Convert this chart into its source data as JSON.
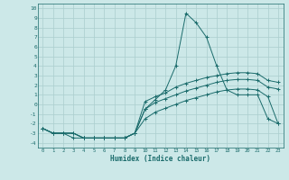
{
  "x": [
    0,
    1,
    2,
    3,
    4,
    5,
    6,
    7,
    8,
    9,
    10,
    11,
    12,
    13,
    14,
    15,
    16,
    17,
    18,
    19,
    20,
    21,
    22,
    23
  ],
  "line1": [
    -2.5,
    -3,
    -3,
    -3.5,
    -3.5,
    -3.5,
    -3.5,
    -3.5,
    -3.5,
    -3,
    -0.5,
    0.5,
    1.5,
    4,
    9.5,
    8.5,
    7,
    4,
    1.5,
    1,
    1,
    1,
    -1.5,
    -2
  ],
  "line2": [
    -2.5,
    -3,
    -3,
    -3,
    -3.5,
    -3.5,
    -3.5,
    -3.5,
    -3.5,
    -3,
    0.3,
    0.8,
    1.2,
    1.8,
    2.2,
    2.5,
    2.8,
    3.0,
    3.2,
    3.3,
    3.3,
    3.2,
    2.5,
    2.3
  ],
  "line3": [
    -2.5,
    -3,
    -3,
    -3,
    -3.5,
    -3.5,
    -3.5,
    -3.5,
    -3.5,
    -3,
    -0.5,
    0.2,
    0.6,
    1.0,
    1.4,
    1.7,
    2.0,
    2.3,
    2.5,
    2.6,
    2.6,
    2.5,
    1.8,
    1.6
  ],
  "line4": [
    -2.5,
    -3,
    -3,
    -3,
    -3.5,
    -3.5,
    -3.5,
    -3.5,
    -3.5,
    -3,
    -1.5,
    -0.8,
    -0.4,
    0.0,
    0.4,
    0.7,
    1.0,
    1.3,
    1.5,
    1.6,
    1.6,
    1.5,
    0.8,
    -2
  ],
  "bg_color": "#cce8e8",
  "line_color": "#1a6b6b",
  "grid_color": "#aacece",
  "xlabel": "Humidex (Indice chaleur)",
  "ylim": [
    -4.5,
    10.5
  ],
  "xlim": [
    -0.5,
    23.5
  ],
  "yticks": [
    10,
    9,
    8,
    7,
    6,
    5,
    4,
    3,
    2,
    1,
    0,
    -1,
    -2,
    -3,
    -4
  ],
  "xticks": [
    0,
    1,
    2,
    3,
    4,
    5,
    6,
    7,
    8,
    9,
    10,
    11,
    12,
    13,
    14,
    15,
    16,
    17,
    18,
    19,
    20,
    21,
    22,
    23
  ]
}
